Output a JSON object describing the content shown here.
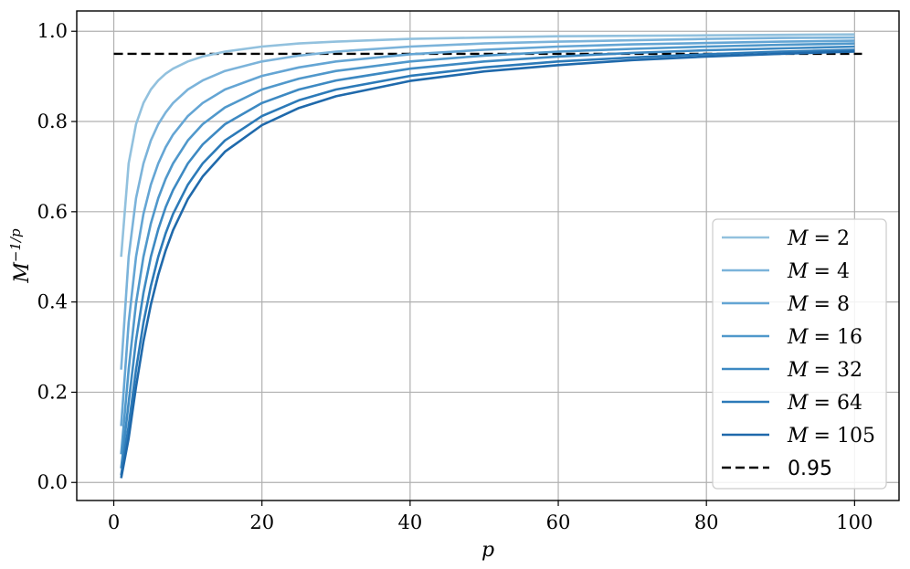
{
  "chart_data": {
    "type": "line",
    "title": "",
    "xlabel": "p",
    "ylabel_base": "M",
    "ylabel_exp": "−1/p",
    "xlim": [
      -5,
      106
    ],
    "ylim": [
      -0.04,
      1.045
    ],
    "grid": true,
    "legend_position": "lower-right",
    "x_ticks": [
      0,
      20,
      40,
      60,
      80,
      100
    ],
    "y_ticks": [
      0.0,
      0.2,
      0.4,
      0.6,
      0.8,
      1.0
    ],
    "x_tick_labels": [
      "0",
      "20",
      "40",
      "60",
      "80",
      "100"
    ],
    "y_tick_labels": [
      "0.0",
      "0.2",
      "0.4",
      "0.6",
      "0.8",
      "1.0"
    ],
    "x": [
      1,
      2,
      3,
      4,
      5,
      6,
      7,
      8,
      10,
      12,
      15,
      20,
      25,
      30,
      40,
      50,
      60,
      70,
      80,
      90,
      100
    ],
    "series": [
      {
        "name": "M = 2",
        "M_label": "M",
        "eq_label": "= 2",
        "color": "#92c1de",
        "values": [
          0.5,
          0.707,
          0.794,
          0.841,
          0.871,
          0.891,
          0.906,
          0.917,
          0.933,
          0.944,
          0.955,
          0.966,
          0.973,
          0.977,
          0.983,
          0.986,
          0.989,
          0.99,
          0.991,
          0.992,
          0.993
        ]
      },
      {
        "name": "M = 4",
        "M_label": "M",
        "eq_label": "= 4",
        "color": "#7bb3da",
        "values": [
          0.25,
          0.5,
          0.63,
          0.707,
          0.758,
          0.794,
          0.82,
          0.841,
          0.871,
          0.891,
          0.912,
          0.933,
          0.946,
          0.955,
          0.966,
          0.973,
          0.977,
          0.98,
          0.983,
          0.985,
          0.986
        ]
      },
      {
        "name": "M = 8",
        "M_label": "M",
        "eq_label": "= 8",
        "color": "#64a5d4",
        "values": [
          0.125,
          0.354,
          0.5,
          0.595,
          0.66,
          0.707,
          0.743,
          0.771,
          0.812,
          0.841,
          0.871,
          0.901,
          0.92,
          0.933,
          0.949,
          0.959,
          0.966,
          0.971,
          0.974,
          0.977,
          0.979
        ]
      },
      {
        "name": "M = 16",
        "M_label": "M",
        "eq_label": "= 16",
        "color": "#5098cb",
        "values": [
          0.0625,
          0.25,
          0.397,
          0.5,
          0.574,
          0.63,
          0.673,
          0.707,
          0.758,
          0.794,
          0.831,
          0.871,
          0.895,
          0.912,
          0.933,
          0.946,
          0.955,
          0.961,
          0.966,
          0.97,
          0.973
        ]
      },
      {
        "name": "M = 32",
        "M_label": "M",
        "eq_label": "= 32",
        "color": "#3d89c2",
        "values": [
          0.03125,
          0.177,
          0.315,
          0.42,
          0.5,
          0.561,
          0.61,
          0.648,
          0.707,
          0.749,
          0.794,
          0.841,
          0.871,
          0.891,
          0.917,
          0.933,
          0.944,
          0.952,
          0.958,
          0.962,
          0.966
        ]
      },
      {
        "name": "M = 64",
        "M_label": "M",
        "eq_label": "= 64",
        "color": "#2c7ab8",
        "values": [
          0.015625,
          0.125,
          0.25,
          0.354,
          0.435,
          0.5,
          0.552,
          0.595,
          0.66,
          0.707,
          0.758,
          0.812,
          0.847,
          0.871,
          0.901,
          0.92,
          0.933,
          0.942,
          0.949,
          0.955,
          0.959
        ]
      },
      {
        "name": "M = 105",
        "M_label": "M",
        "eq_label": "= 105",
        "color": "#1f69ab",
        "values": [
          0.00952,
          0.0976,
          0.212,
          0.313,
          0.394,
          0.46,
          0.514,
          0.559,
          0.628,
          0.678,
          0.733,
          0.792,
          0.83,
          0.856,
          0.89,
          0.911,
          0.925,
          0.936,
          0.944,
          0.95,
          0.955
        ]
      }
    ],
    "reference_line": {
      "name": "0.95",
      "y": 0.95,
      "x_range": [
        0,
        101
      ],
      "color": "#000000",
      "style": "dashed"
    }
  }
}
